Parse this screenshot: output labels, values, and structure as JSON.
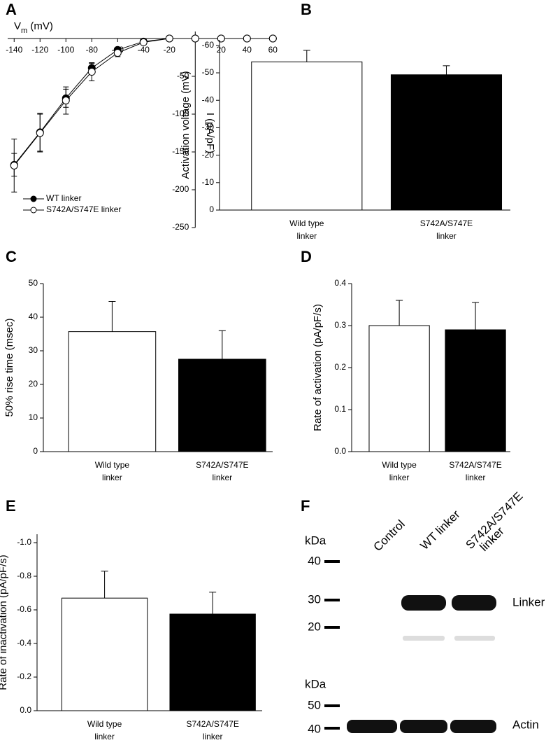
{
  "chart_data": [
    {
      "type": "line",
      "panel_label": "A",
      "x_label_parts": [
        "V",
        "m",
        " (mV)"
      ],
      "y_label": "I (pA/pF)",
      "x": [
        -140,
        -120,
        -100,
        -80,
        -60,
        -40,
        -20,
        0,
        20,
        40,
        60
      ],
      "series": [
        {
          "name": "WT linker",
          "color": "#000000",
          "fill": "#000000",
          "values": [
            -167,
            -124,
            -79,
            -39,
            -15,
            -4,
            0,
            0,
            0,
            0,
            0
          ],
          "errors": [
            15,
            25,
            12,
            6,
            3,
            1,
            0,
            0,
            0,
            0,
            0
          ]
        },
        {
          "name": "S742A/S747E linker",
          "color": "#000000",
          "fill": "#ffffff",
          "values": [
            -168,
            -125,
            -82,
            -44,
            -19,
            -5,
            0,
            0,
            0,
            0,
            0
          ],
          "errors": [
            35,
            25,
            18,
            12,
            5,
            2,
            0,
            0,
            0,
            0,
            0
          ]
        }
      ],
      "xlim": [
        -145,
        62
      ],
      "xticks": [
        -140,
        -120,
        -100,
        -80,
        -60,
        -40,
        -20,
        20,
        40,
        60
      ],
      "ylim": [
        -250,
        0
      ],
      "yticks": [
        -250,
        -200,
        -150,
        -100,
        -50
      ],
      "legend": "lower left"
    },
    {
      "type": "bar",
      "panel_label": "B",
      "y_label": "Activation voltage (mV)",
      "categories": [
        [
          "Wild type",
          "linker"
        ],
        [
          "S742A/S747E",
          "linker"
        ]
      ],
      "values": [
        -54,
        -49.3
      ],
      "errors": [
        4.2,
        3.3
      ],
      "colors": [
        "#ffffff",
        "#000000"
      ],
      "ylim": [
        0,
        -62
      ],
      "yticks": [
        0,
        -10,
        -20,
        -30,
        -40,
        -50,
        -60
      ]
    },
    {
      "type": "bar",
      "panel_label": "C",
      "y_label": "50% rise time (msec)",
      "categories": [
        [
          "Wild type",
          "linker"
        ],
        [
          "S742A/S747E",
          "linker"
        ]
      ],
      "values": [
        35.7,
        27.5
      ],
      "errors": [
        9,
        8.5
      ],
      "colors": [
        "#ffffff",
        "#000000"
      ],
      "ylim": [
        0,
        50
      ],
      "yticks": [
        0,
        10,
        20,
        30,
        40,
        50
      ]
    },
    {
      "type": "bar",
      "panel_label": "D",
      "y_label": "Rate of activation (pA/pF/s)",
      "categories": [
        [
          "Wild type",
          "linker"
        ],
        [
          "S742A/S747E",
          "linker"
        ]
      ],
      "values": [
        0.3,
        0.29
      ],
      "errors": [
        0.06,
        0.065
      ],
      "colors": [
        "#ffffff",
        "#000000"
      ],
      "ylim": [
        0,
        0.4
      ],
      "yticks": [
        {
          "value": 0,
          "label": "0.0"
        },
        0.1,
        0.2,
        0.3,
        0.4
      ]
    },
    {
      "type": "bar",
      "panel_label": "E",
      "y_label": "Rate of inactivation (pA/pF/s)",
      "categories": [
        [
          "Wild type",
          "linker"
        ],
        [
          "S742A/S747E",
          "linker"
        ]
      ],
      "values": [
        -0.67,
        -0.575
      ],
      "errors": [
        0.16,
        0.13
      ],
      "colors": [
        "#ffffff",
        "#000000"
      ],
      "ylim": [
        0,
        -1.05
      ],
      "yticks": [
        {
          "value": 0,
          "label": "0.0"
        },
        -0.2,
        -0.4,
        -0.6,
        -0.8,
        {
          "value": -1,
          "label": "-1.0"
        }
      ]
    }
  ],
  "blot": {
    "panel_label": "F",
    "unit": "kDa",
    "top_markers": [
      "40",
      "30",
      "20"
    ],
    "bottom_markers": [
      "50",
      "40"
    ],
    "lanes": [
      [
        "Control"
      ],
      [
        "WT linker"
      ],
      [
        "S742A/S747E",
        "linker"
      ]
    ],
    "top_band": "Linker",
    "bottom_band": "Actin"
  }
}
